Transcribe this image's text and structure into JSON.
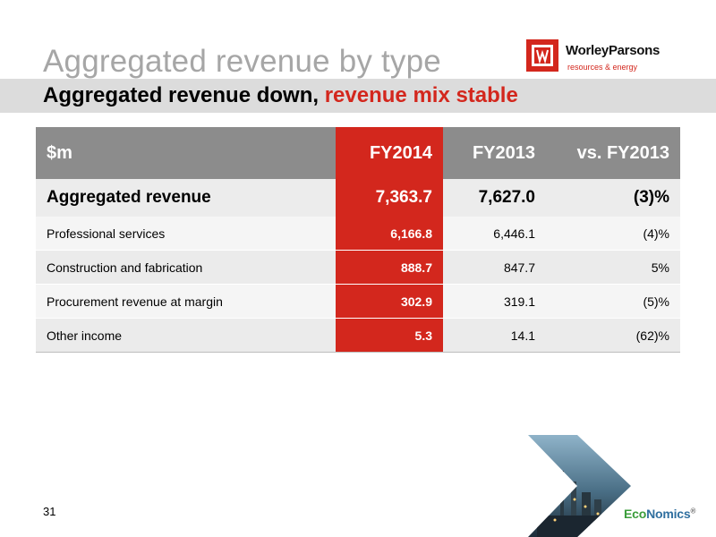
{
  "slide": {
    "title": "Aggregated revenue by type",
    "subtitle_main": "Aggregated revenue down, ",
    "subtitle_accent": "revenue mix stable",
    "page_number": "31"
  },
  "logo": {
    "wordmark": "WorleyParsons",
    "tagline": "resources & energy"
  },
  "footer_brand": {
    "eco": "Eco",
    "nomics": "Nomics",
    "mark": "®"
  },
  "table": {
    "headers": [
      "$m",
      "FY2014",
      "FY2013",
      "vs. FY2013"
    ],
    "total": {
      "label": "Aggregated revenue",
      "fy2014": "7,363.7",
      "fy2013": "7,627.0",
      "change": "(3)%"
    },
    "rows": [
      {
        "label": "Professional services",
        "fy2014": "6,166.8",
        "fy2013": "6,446.1",
        "change": "(4)%"
      },
      {
        "label": "Construction and fabrication",
        "fy2014": "888.7",
        "fy2013": "847.7",
        "change": "5%"
      },
      {
        "label": "Procurement revenue at margin",
        "fy2014": "302.9",
        "fy2013": "319.1",
        "change": "(5)%"
      },
      {
        "label": "Other income",
        "fy2014": "5.3",
        "fy2013": "14.1",
        "change": "(62)%"
      }
    ]
  },
  "colors": {
    "accent_red": "#d3271d",
    "header_gray": "#8c8c8c",
    "title_gray": "#a6a6a6"
  }
}
